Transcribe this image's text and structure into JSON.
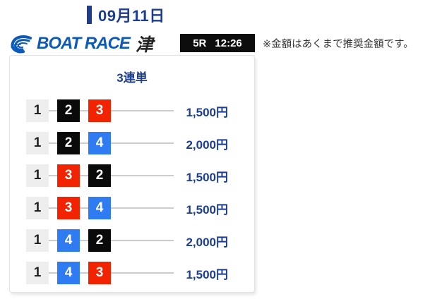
{
  "header": {
    "date_label": "09月11日"
  },
  "brand": {
    "logo_text": "BOAT RACE",
    "venue": "津"
  },
  "race": {
    "race_no": "5R",
    "time": "12:26"
  },
  "disclaimer": "※金額はあくまで推奨金額です。",
  "card": {
    "title": "3連単",
    "rows": [
      {
        "combo": [
          "1",
          "2",
          "3"
        ],
        "amount": "1,500円"
      },
      {
        "combo": [
          "1",
          "2",
          "4"
        ],
        "amount": "2,000円"
      },
      {
        "combo": [
          "1",
          "3",
          "2"
        ],
        "amount": "1,500円"
      },
      {
        "combo": [
          "1",
          "3",
          "4"
        ],
        "amount": "1,500円"
      },
      {
        "combo": [
          "1",
          "4",
          "2"
        ],
        "amount": "2,000円"
      },
      {
        "combo": [
          "1",
          "4",
          "3"
        ],
        "amount": "1,500円"
      }
    ]
  },
  "colors": {
    "accent_navy": "#1d3d8f",
    "brand_blue": "#0d5ab8",
    "badge_black": "#0d0d0d",
    "line_gray": "#cccccc",
    "racer_bg": {
      "1": "#eeeeee",
      "2": "#0a0a0a",
      "3": "#f22300",
      "4": "#2f7bf2"
    },
    "racer_fg": {
      "1": "#222222",
      "2": "#ffffff",
      "3": "#ffffff",
      "4": "#ffffff"
    }
  }
}
